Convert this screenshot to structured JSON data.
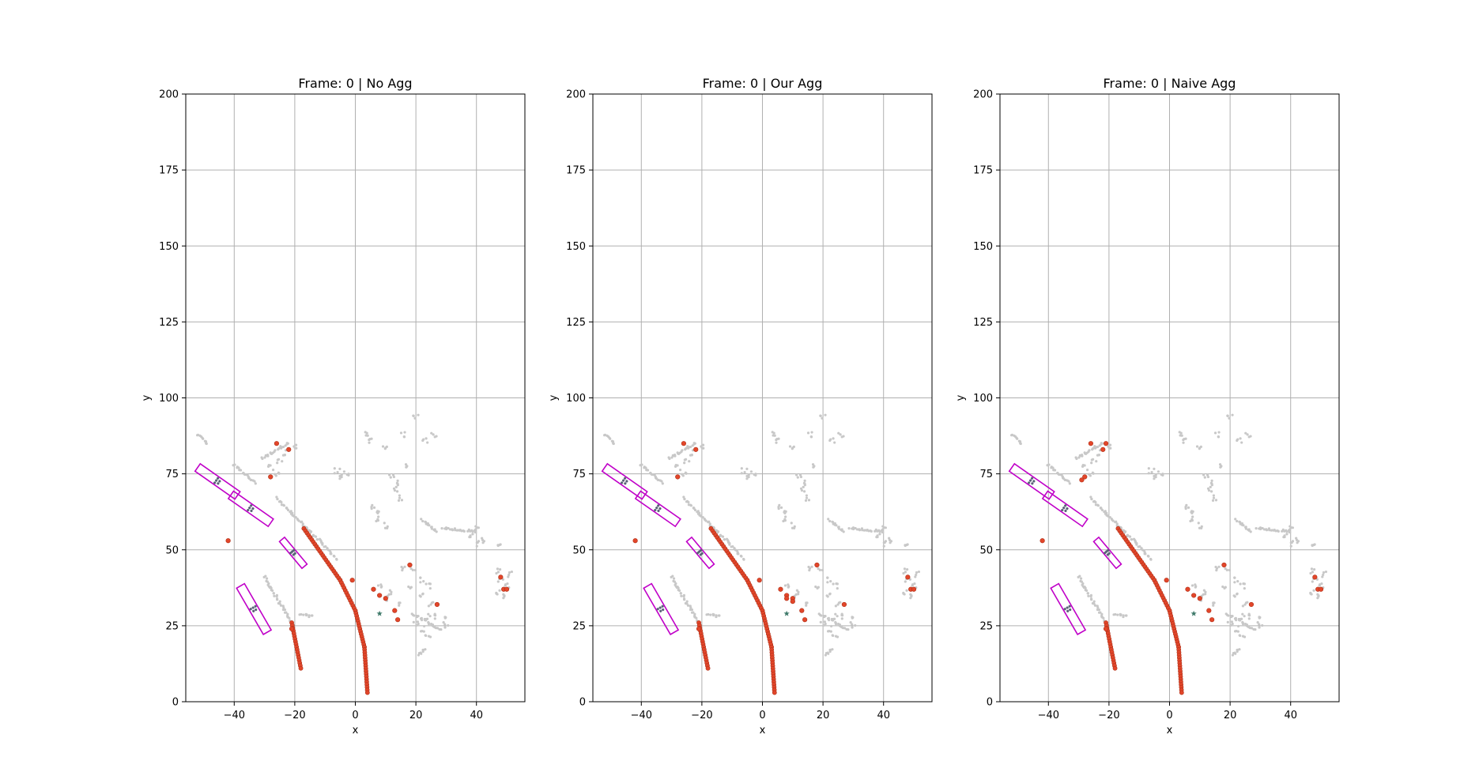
{
  "colors": {
    "grid": "#b0b0b0",
    "background_points": "#c8c8c8",
    "detected_points": "#e2462a",
    "detected_edge": "#b03018",
    "box": "#c000c8",
    "box_points": "#5a6478",
    "marker": "#3f7a6a"
  },
  "chart_data": [
    {
      "type": "scatter",
      "title": "Frame: 0 | No Agg",
      "xlabel": "x",
      "ylabel": "y",
      "xlim": [
        -56,
        56
      ],
      "ylim": [
        0,
        200
      ],
      "xticks": [
        -40,
        -20,
        0,
        20,
        40
      ],
      "yticks": [
        0,
        25,
        50,
        75,
        100,
        125,
        150,
        175,
        200
      ],
      "grid": true,
      "variant": "none"
    },
    {
      "type": "scatter",
      "title": "Frame: 0 | Our Agg",
      "xlabel": "x",
      "ylabel": "y",
      "xlim": [
        -56,
        56
      ],
      "ylim": [
        0,
        200
      ],
      "xticks": [
        -40,
        -20,
        0,
        20,
        40
      ],
      "yticks": [
        0,
        25,
        50,
        75,
        100,
        125,
        150,
        175,
        200
      ],
      "grid": true,
      "variant": "ours"
    },
    {
      "type": "scatter",
      "title": "Frame: 0 | Naive Agg",
      "xlabel": "x",
      "ylabel": "y",
      "xlim": [
        -56,
        56
      ],
      "ylim": [
        0,
        200
      ],
      "xticks": [
        -40,
        -20,
        0,
        20,
        40
      ],
      "yticks": [
        0,
        25,
        50,
        75,
        100,
        125,
        150,
        175,
        200
      ],
      "grid": true,
      "variant": "naive"
    }
  ],
  "scene": {
    "background_segments": [
      [
        [
          -52,
          88
        ],
        [
          -49,
          85
        ]
      ],
      [
        [
          -40,
          78
        ],
        [
          -33,
          72
        ]
      ],
      [
        [
          -26,
          67
        ],
        [
          -6,
          47
        ]
      ],
      [
        [
          -30,
          41
        ],
        [
          -21,
          26
        ]
      ],
      [
        [
          -31,
          80
        ],
        [
          -22,
          85
        ]
      ],
      [
        [
          -18,
          29
        ],
        [
          -14,
          28
        ]
      ],
      [
        [
          19,
          29
        ],
        [
          28,
          24
        ]
      ],
      [
        [
          29,
          57
        ],
        [
          40,
          56
        ]
      ],
      [
        [
          22,
          60
        ],
        [
          27,
          56
        ]
      ]
    ],
    "background_clusters": [
      [
        -28,
        77
      ],
      [
        -25,
        79
      ],
      [
        -26,
        75
      ],
      [
        -23,
        82
      ],
      [
        -20,
        84
      ],
      [
        -6,
        76
      ],
      [
        -3,
        75
      ],
      [
        -5,
        74
      ],
      [
        4,
        88
      ],
      [
        5,
        86
      ],
      [
        10,
        84
      ],
      [
        16,
        88
      ],
      [
        20,
        94
      ],
      [
        23,
        86
      ],
      [
        26,
        88
      ],
      [
        6,
        64
      ],
      [
        8,
        62
      ],
      [
        7,
        60
      ],
      [
        10,
        58
      ],
      [
        12,
        74
      ],
      [
        14,
        72
      ],
      [
        13,
        70
      ],
      [
        15,
        67
      ],
      [
        17,
        78
      ],
      [
        38,
        55
      ],
      [
        40,
        57
      ],
      [
        42,
        53
      ],
      [
        40,
        52
      ],
      [
        22,
        40
      ],
      [
        24,
        38
      ],
      [
        22,
        35
      ],
      [
        25,
        32
      ],
      [
        26,
        28
      ],
      [
        29,
        27
      ],
      [
        30,
        25
      ],
      [
        20,
        26
      ],
      [
        22,
        24
      ],
      [
        24,
        22
      ],
      [
        21,
        16
      ],
      [
        23,
        17
      ],
      [
        16,
        44
      ],
      [
        18,
        38
      ],
      [
        19,
        44
      ],
      [
        24,
        28
      ],
      [
        8,
        38
      ],
      [
        10,
        34
      ],
      [
        12,
        36
      ],
      [
        14,
        32
      ],
      [
        47,
        43
      ],
      [
        48,
        40
      ],
      [
        47,
        36
      ],
      [
        50,
        38
      ],
      [
        49,
        35
      ],
      [
        48,
        52
      ],
      [
        51,
        42
      ]
    ],
    "detected_segments": [
      [
        [
          -17,
          57
        ],
        [
          -5,
          40
        ]
      ],
      [
        [
          -5,
          40
        ],
        [
          0,
          30
        ]
      ],
      [
        [
          0,
          30
        ],
        [
          3,
          18
        ]
      ],
      [
        [
          3,
          18
        ],
        [
          4,
          3
        ]
      ],
      [
        [
          -21,
          26
        ],
        [
          -18,
          11
        ]
      ]
    ],
    "detected_points": [
      [
        -26,
        85
      ],
      [
        -22,
        83
      ],
      [
        -28,
        74
      ],
      [
        -42,
        53
      ],
      [
        -1,
        40
      ],
      [
        6,
        37
      ],
      [
        8,
        35
      ],
      [
        10,
        34
      ],
      [
        13,
        30
      ],
      [
        14,
        27
      ],
      [
        18,
        45
      ],
      [
        27,
        32
      ],
      [
        48,
        41
      ],
      [
        49,
        37
      ],
      [
        50,
        37
      ],
      [
        -21,
        24
      ]
    ],
    "boxes": [
      [
        -45.5,
        72.5,
        3.0,
        5.0,
        -55
      ],
      [
        -34.5,
        63.5,
        3.0,
        5.0,
        -55
      ],
      [
        -20.5,
        49.0,
        2.2,
        3.6,
        -40
      ],
      [
        -33.5,
        30.5,
        3.0,
        5.5,
        -30
      ]
    ],
    "marker": [
      8,
      29
    ],
    "ours_extra_points": [
      [
        8,
        34
      ],
      [
        10,
        33
      ]
    ],
    "naive_extra_points": [
      [
        -29,
        73
      ],
      [
        -21,
        85
      ]
    ]
  }
}
